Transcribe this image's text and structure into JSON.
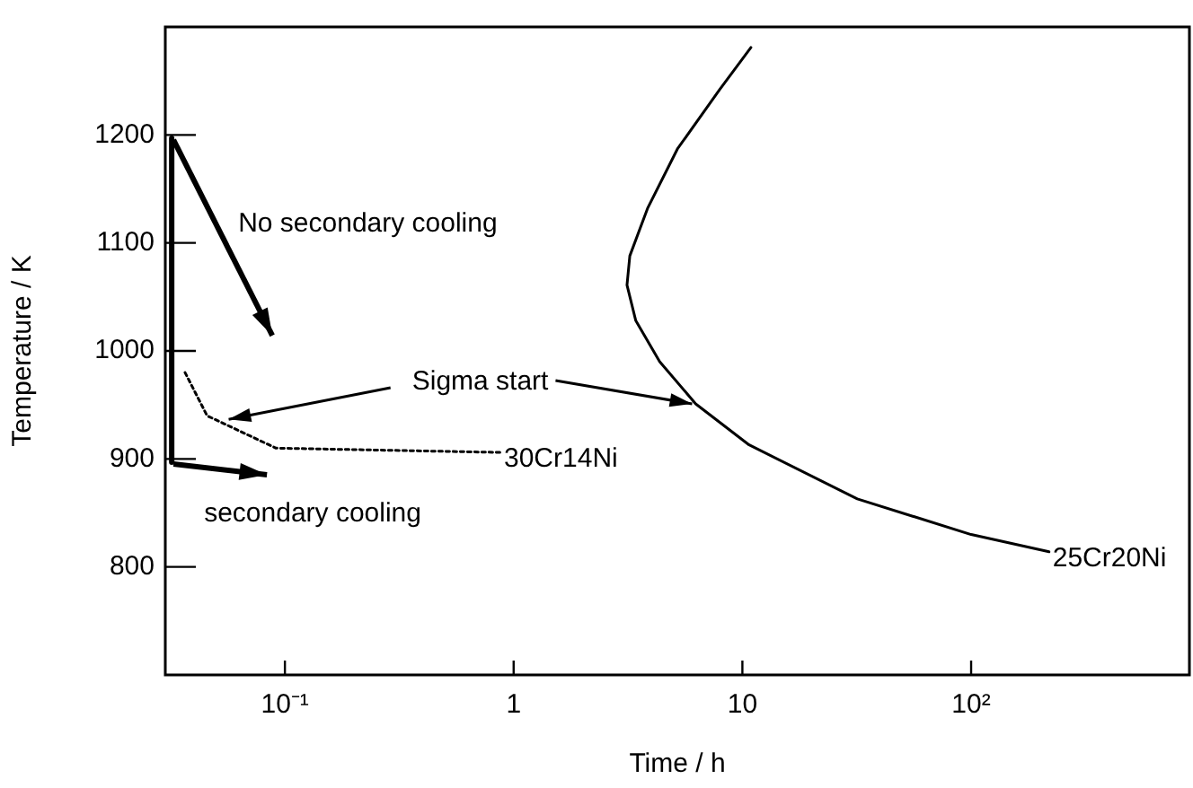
{
  "chart_data": {
    "type": "line",
    "xlabel": "Time / h",
    "ylabel": "Temperature / K",
    "log": "x",
    "xlim": [
      0.03,
      900
    ],
    "xticks": [
      {
        "value": 0.1,
        "label": "10⁻¹"
      },
      1,
      10,
      {
        "value": 100,
        "label": "10²"
      }
    ],
    "ylim": [
      700,
      1300
    ],
    "yticks": [
      800,
      900,
      1000,
      1100,
      1200
    ],
    "grid": false,
    "legend": false,
    "series": [
      {
        "name": "30Cr14Ni",
        "color": "#000000",
        "line_style": "dotted",
        "x": [
          0.0366,
          0.0457,
          0.0914,
          0.875
        ],
        "values": [
          980,
          940,
          910,
          906
        ]
      },
      {
        "name": "25Cr20Ni",
        "color": "#000000",
        "line_style": "solid",
        "x": [
          10.9,
          7.95,
          5.2,
          3.85,
          3.22,
          3.13,
          3.42,
          4.35,
          6.25,
          10.7,
          31.8,
          100,
          219
        ],
        "values": [
          1281,
          1242,
          1187,
          1132,
          1088,
          1061,
          1028,
          990,
          951,
          913,
          863,
          830,
          814
        ]
      },
      {
        "color": "#000000",
        "line_style": "solid",
        "x": [
          0.032,
          0.032
        ],
        "values": [
          1197,
          897
        ]
      }
    ],
    "annotations": [
      "No secondary cooling",
      {
        "text": "secondary cooling",
        "x": 0.032,
        "y": 897
      },
      {
        "text": "Sigma start",
        "x": 6.25,
        "y": 951
      }
    ]
  }
}
